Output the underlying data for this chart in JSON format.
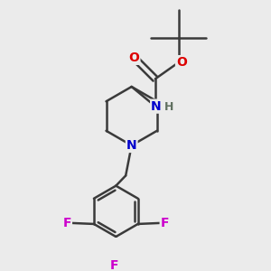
{
  "background_color": "#ebebeb",
  "bond_color": "#3a3a3a",
  "atom_colors": {
    "O": "#dd0000",
    "N": "#0000cc",
    "F": "#cc00cc",
    "H": "#607060",
    "C": "#3a3a3a"
  },
  "figsize": [
    3.0,
    3.0
  ],
  "dpi": 100
}
